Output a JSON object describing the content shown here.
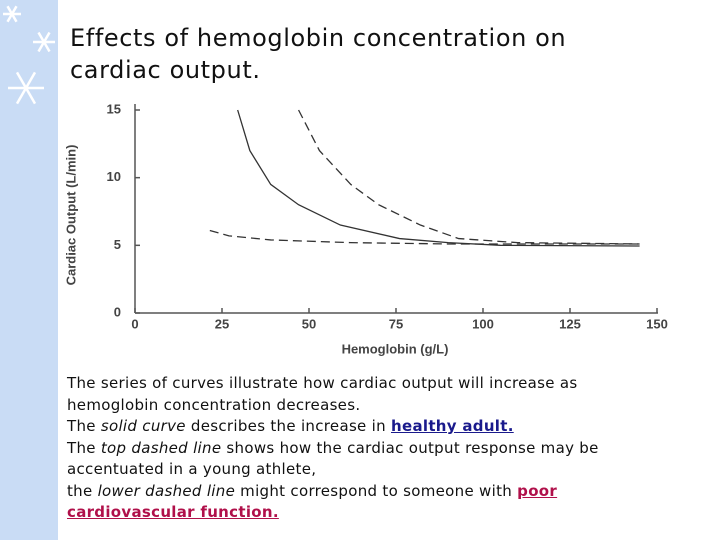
{
  "title": "Effects of hemoglobin concentration on cardiac output.",
  "chart_data": {
    "type": "line",
    "xlabel": "Hemoglobin (g/L)",
    "ylabel": "Cardiac Output (L/min)",
    "xlim": [
      0,
      150
    ],
    "xticks": [
      0,
      25,
      50,
      75,
      100,
      125,
      150
    ],
    "ylim": [
      0,
      15
    ],
    "yticks": [
      0,
      5,
      10,
      15
    ],
    "series": [
      {
        "color": "#333333",
        "dashed": false,
        "x": [
          29.5,
          33,
          39,
          47,
          59,
          76,
          90,
          105,
          145
        ],
        "values": [
          15,
          12,
          9.5,
          8,
          6.5,
          5.5,
          5.2,
          5,
          4.95
        ]
      },
      {
        "color": "#333333",
        "dashed": true,
        "x": [
          47,
          53,
          62,
          70,
          82,
          93,
          110,
          145
        ],
        "values": [
          15,
          12,
          9.5,
          8,
          6.5,
          5.5,
          5.2,
          5.1
        ]
      },
      {
        "color": "#333333",
        "dashed": true,
        "x": [
          21.5,
          27,
          39,
          62,
          90,
          145
        ],
        "values": [
          6.1,
          5.7,
          5.4,
          5.2,
          5.1,
          5.1
        ]
      }
    ]
  },
  "paragraphs": [
    [
      "The series of curves illustrate how cardiac output will increase as hemoglobin concentration decreases."
    ],
    [
      "The ",
      "solid curve",
      " describes the increase in ",
      "healthy adult."
    ],
    [
      "The ",
      "top dashed line",
      " shows how the cardiac output response may be accentuated in a young athlete,"
    ],
    [
      "the ",
      "lower dashed line",
      " might correspond to someone with ",
      "poor cardiovascular function."
    ]
  ]
}
